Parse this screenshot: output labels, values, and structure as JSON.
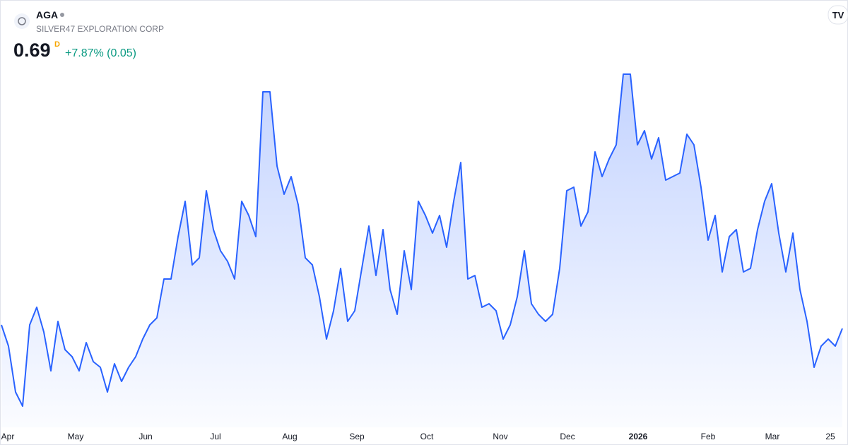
{
  "header": {
    "symbol": "AGA",
    "company": "SILVER47 EXPLORATION CORP",
    "price": 0.69,
    "interval": "D",
    "change_label": "+7.87% (0.05)"
  },
  "chart_data": {
    "type": "area",
    "color": "#2962ff",
    "values": [
      0.7,
      0.64,
      0.51,
      0.47,
      0.7,
      0.75,
      0.68,
      0.57,
      0.71,
      0.63,
      0.61,
      0.57,
      0.65,
      0.596,
      0.58,
      0.51,
      0.59,
      0.54,
      0.58,
      0.61,
      0.66,
      0.7,
      0.72,
      0.83,
      0.83,
      0.95,
      1.05,
      0.87,
      0.89,
      1.08,
      0.97,
      0.91,
      0.88,
      0.83,
      1.05,
      1.01,
      0.95,
      1.36,
      1.36,
      1.15,
      1.07,
      1.12,
      1.04,
      0.89,
      0.87,
      0.78,
      0.66,
      0.74,
      0.86,
      0.71,
      0.74,
      0.86,
      0.98,
      0.84,
      0.97,
      0.8,
      0.73,
      0.91,
      0.8,
      1.05,
      1.01,
      0.96,
      1.01,
      0.92,
      1.05,
      1.16,
      0.83,
      0.84,
      0.75,
      0.76,
      0.74,
      0.66,
      0.7,
      0.78,
      0.91,
      0.76,
      0.73,
      0.71,
      0.73,
      0.86,
      1.08,
      1.09,
      0.98,
      1.02,
      1.19,
      1.12,
      1.17,
      1.21,
      1.41,
      1.41,
      1.21,
      1.25,
      1.17,
      1.23,
      1.11,
      1.12,
      1.13,
      1.24,
      1.21,
      1.09,
      0.94,
      1.01,
      0.85,
      0.95,
      0.97,
      0.85,
      0.86,
      0.97,
      1.05,
      1.1,
      0.96,
      0.85,
      0.96,
      0.8,
      0.71,
      0.58,
      0.64,
      0.66,
      0.64,
      0.69
    ],
    "xlim": [
      0,
      119
    ],
    "xticks": [
      {
        "value": 0.9,
        "label": "Apr"
      },
      {
        "value": 10.5,
        "label": "May"
      },
      {
        "value": 20.4,
        "label": "Jun"
      },
      {
        "value": 30.3,
        "label": "Jul"
      },
      {
        "value": 40.8,
        "label": "Aug"
      },
      {
        "value": 50.3,
        "label": "Sep"
      },
      {
        "value": 60.2,
        "label": "Oct"
      },
      {
        "value": 70.6,
        "label": "Nov"
      },
      {
        "value": 80.1,
        "label": "Dec"
      },
      {
        "value": 90.1,
        "label": "2026"
      },
      {
        "value": 100,
        "label": "Feb"
      },
      {
        "value": 109.1,
        "label": "Mar"
      },
      {
        "value": 117.3,
        "label": "25"
      }
    ],
    "ylim": [
      0.42,
      1.44
    ]
  }
}
